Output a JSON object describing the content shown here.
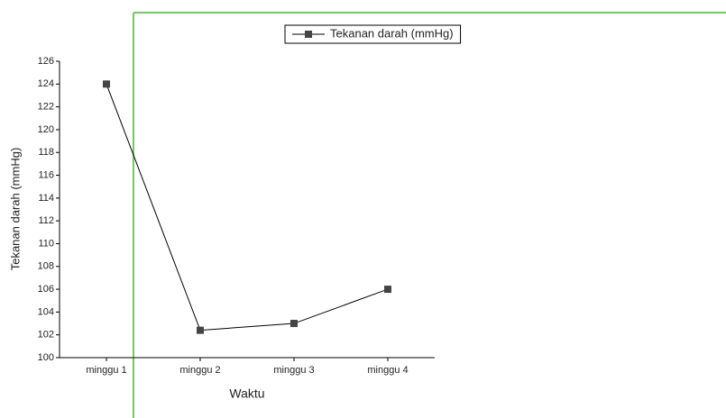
{
  "chart_data": {
    "type": "line",
    "categories": [
      "minggu 1",
      "minggu 2",
      "minggu 3",
      "minggu 4"
    ],
    "series": [
      {
        "name": "Tekanan darah (mmHg)",
        "color": "#444444",
        "values": [
          124,
          102.4,
          103,
          106
        ]
      }
    ],
    "ylim": [
      100,
      126
    ],
    "yticks": [
      100,
      102,
      104,
      106,
      108,
      110,
      112,
      114,
      116,
      118,
      120,
      122,
      124,
      126
    ],
    "xlabel": "Waktu",
    "ylabel": "Tekanan darah (mmHg)",
    "legend": "top",
    "grid": false
  }
}
